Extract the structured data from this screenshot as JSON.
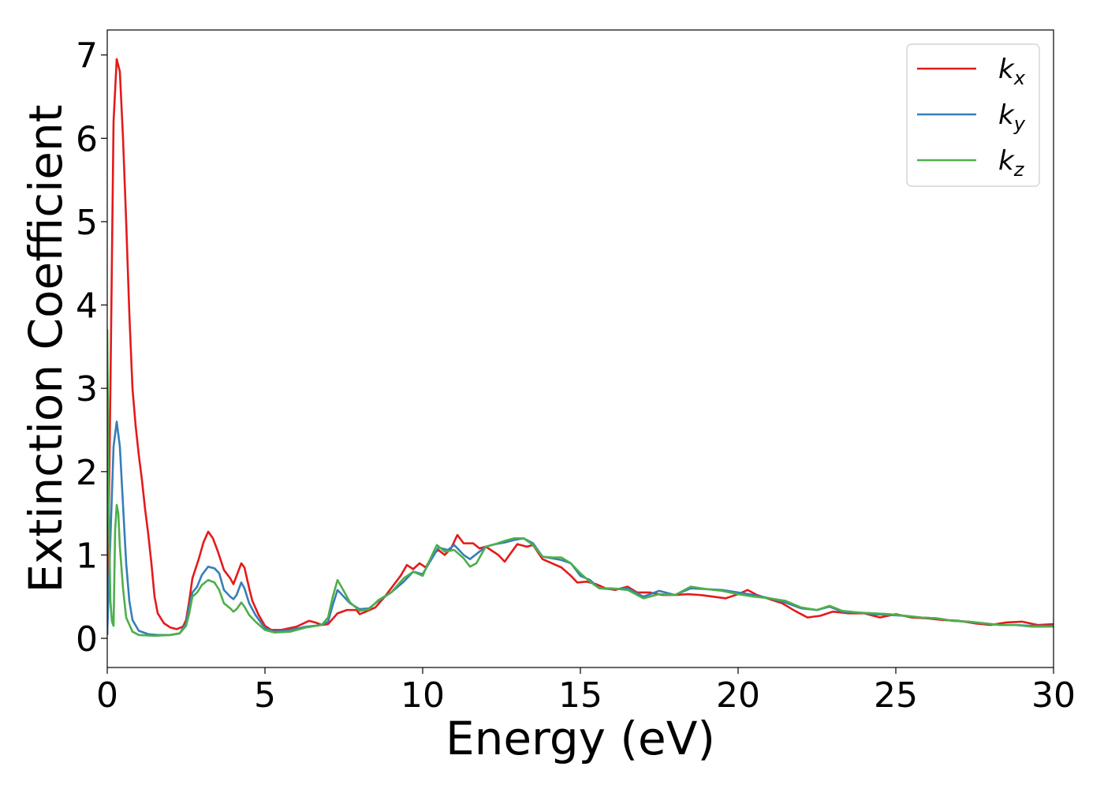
{
  "chart_data": {
    "type": "line",
    "title": "",
    "xlabel": "Energy (eV)",
    "ylabel": "Extinction Coefficient",
    "xlim": [
      0,
      30
    ],
    "ylim": [
      -0.35,
      7.3
    ],
    "grid": false,
    "legend": "top-right",
    "x_ticks": [
      0,
      5,
      10,
      15,
      20,
      25,
      30
    ],
    "y_ticks": [
      0,
      1,
      2,
      3,
      4,
      5,
      6,
      7
    ],
    "series": [
      {
        "name": "k",
        "subscript": "x",
        "color": "#e41a1c",
        "points": [
          [
            0,
            0.05
          ],
          [
            0.1,
            3.0
          ],
          [
            0.2,
            6.2
          ],
          [
            0.3,
            6.95
          ],
          [
            0.4,
            6.8
          ],
          [
            0.5,
            6.0
          ],
          [
            0.6,
            5.0
          ],
          [
            0.7,
            3.9
          ],
          [
            0.8,
            3.0
          ],
          [
            0.9,
            2.55
          ],
          [
            1.0,
            2.2
          ],
          [
            1.1,
            1.9
          ],
          [
            1.2,
            1.55
          ],
          [
            1.3,
            1.25
          ],
          [
            1.4,
            0.9
          ],
          [
            1.5,
            0.5
          ],
          [
            1.6,
            0.3
          ],
          [
            1.8,
            0.18
          ],
          [
            2.0,
            0.13
          ],
          [
            2.2,
            0.11
          ],
          [
            2.4,
            0.14
          ],
          [
            2.5,
            0.22
          ],
          [
            2.6,
            0.45
          ],
          [
            2.7,
            0.72
          ],
          [
            2.9,
            0.95
          ],
          [
            3.05,
            1.15
          ],
          [
            3.2,
            1.28
          ],
          [
            3.35,
            1.2
          ],
          [
            3.5,
            1.05
          ],
          [
            3.7,
            0.82
          ],
          [
            3.9,
            0.72
          ],
          [
            4.0,
            0.65
          ],
          [
            4.1,
            0.75
          ],
          [
            4.25,
            0.9
          ],
          [
            4.35,
            0.85
          ],
          [
            4.5,
            0.6
          ],
          [
            4.6,
            0.45
          ],
          [
            4.8,
            0.28
          ],
          [
            5.0,
            0.15
          ],
          [
            5.2,
            0.1
          ],
          [
            5.5,
            0.1
          ],
          [
            6.0,
            0.14
          ],
          [
            6.4,
            0.21
          ],
          [
            6.6,
            0.19
          ],
          [
            6.8,
            0.16
          ],
          [
            7.0,
            0.17
          ],
          [
            7.3,
            0.3
          ],
          [
            7.6,
            0.34
          ],
          [
            7.9,
            0.34
          ],
          [
            8.0,
            0.29
          ],
          [
            8.2,
            0.32
          ],
          [
            8.5,
            0.37
          ],
          [
            8.8,
            0.5
          ],
          [
            9.1,
            0.65
          ],
          [
            9.3,
            0.75
          ],
          [
            9.5,
            0.88
          ],
          [
            9.7,
            0.83
          ],
          [
            9.9,
            0.9
          ],
          [
            10.1,
            0.85
          ],
          [
            10.35,
            1.02
          ],
          [
            10.5,
            1.06
          ],
          [
            10.7,
            1.0
          ],
          [
            10.9,
            1.08
          ],
          [
            11.1,
            1.24
          ],
          [
            11.3,
            1.14
          ],
          [
            11.6,
            1.14
          ],
          [
            11.8,
            1.08
          ],
          [
            12.0,
            1.1
          ],
          [
            12.2,
            1.05
          ],
          [
            12.4,
            1.0
          ],
          [
            12.6,
            0.92
          ],
          [
            12.75,
            1.0
          ],
          [
            13.0,
            1.13
          ],
          [
            13.3,
            1.1
          ],
          [
            13.5,
            1.12
          ],
          [
            13.8,
            0.95
          ],
          [
            14.1,
            0.9
          ],
          [
            14.4,
            0.85
          ],
          [
            14.7,
            0.75
          ],
          [
            14.9,
            0.67
          ],
          [
            15.2,
            0.68
          ],
          [
            15.5,
            0.65
          ],
          [
            15.8,
            0.6
          ],
          [
            16.1,
            0.58
          ],
          [
            16.5,
            0.62
          ],
          [
            16.8,
            0.55
          ],
          [
            17.2,
            0.55
          ],
          [
            17.6,
            0.52
          ],
          [
            18.0,
            0.52
          ],
          [
            18.4,
            0.53
          ],
          [
            18.8,
            0.52
          ],
          [
            19.2,
            0.5
          ],
          [
            19.6,
            0.48
          ],
          [
            20.0,
            0.53
          ],
          [
            20.3,
            0.58
          ],
          [
            20.6,
            0.52
          ],
          [
            21.0,
            0.47
          ],
          [
            21.4,
            0.42
          ],
          [
            21.8,
            0.33
          ],
          [
            22.2,
            0.25
          ],
          [
            22.6,
            0.27
          ],
          [
            23.0,
            0.32
          ],
          [
            23.5,
            0.3
          ],
          [
            24.0,
            0.3
          ],
          [
            24.5,
            0.25
          ],
          [
            25.0,
            0.29
          ],
          [
            25.5,
            0.25
          ],
          [
            26.0,
            0.24
          ],
          [
            26.5,
            0.22
          ],
          [
            27.0,
            0.21
          ],
          [
            27.5,
            0.18
          ],
          [
            28.0,
            0.16
          ],
          [
            28.5,
            0.19
          ],
          [
            29.0,
            0.2
          ],
          [
            29.5,
            0.16
          ],
          [
            30.0,
            0.17
          ]
        ]
      },
      {
        "name": "k",
        "subscript": "y",
        "color": "#377eb8",
        "points": [
          [
            0,
            0.05
          ],
          [
            0.1,
            1.2
          ],
          [
            0.2,
            2.3
          ],
          [
            0.3,
            2.6
          ],
          [
            0.4,
            2.3
          ],
          [
            0.5,
            1.6
          ],
          [
            0.6,
            0.9
          ],
          [
            0.7,
            0.45
          ],
          [
            0.8,
            0.22
          ],
          [
            1.0,
            0.09
          ],
          [
            1.3,
            0.05
          ],
          [
            1.6,
            0.04
          ],
          [
            2.0,
            0.04
          ],
          [
            2.3,
            0.06
          ],
          [
            2.5,
            0.18
          ],
          [
            2.6,
            0.38
          ],
          [
            2.7,
            0.55
          ],
          [
            2.85,
            0.62
          ],
          [
            3.0,
            0.76
          ],
          [
            3.2,
            0.86
          ],
          [
            3.4,
            0.84
          ],
          [
            3.55,
            0.78
          ],
          [
            3.7,
            0.58
          ],
          [
            3.9,
            0.5
          ],
          [
            4.0,
            0.47
          ],
          [
            4.1,
            0.52
          ],
          [
            4.25,
            0.67
          ],
          [
            4.35,
            0.6
          ],
          [
            4.5,
            0.42
          ],
          [
            4.7,
            0.28
          ],
          [
            5.0,
            0.12
          ],
          [
            5.3,
            0.08
          ],
          [
            5.8,
            0.1
          ],
          [
            6.3,
            0.14
          ],
          [
            6.8,
            0.16
          ],
          [
            7.0,
            0.2
          ],
          [
            7.15,
            0.4
          ],
          [
            7.3,
            0.58
          ],
          [
            7.45,
            0.52
          ],
          [
            7.7,
            0.42
          ],
          [
            8.0,
            0.35
          ],
          [
            8.3,
            0.36
          ],
          [
            8.6,
            0.45
          ],
          [
            9.0,
            0.55
          ],
          [
            9.4,
            0.68
          ],
          [
            9.7,
            0.8
          ],
          [
            10.0,
            0.77
          ],
          [
            10.2,
            0.9
          ],
          [
            10.5,
            1.09
          ],
          [
            10.8,
            1.06
          ],
          [
            11.0,
            1.12
          ],
          [
            11.3,
            1.0
          ],
          [
            11.5,
            0.95
          ],
          [
            11.8,
            1.04
          ],
          [
            12.0,
            1.1
          ],
          [
            12.3,
            1.13
          ],
          [
            12.6,
            1.15
          ],
          [
            12.9,
            1.18
          ],
          [
            13.2,
            1.2
          ],
          [
            13.5,
            1.14
          ],
          [
            13.8,
            0.98
          ],
          [
            14.1,
            0.96
          ],
          [
            14.4,
            0.94
          ],
          [
            14.7,
            0.9
          ],
          [
            15.0,
            0.75
          ],
          [
            15.3,
            0.7
          ],
          [
            15.6,
            0.6
          ],
          [
            16.0,
            0.59
          ],
          [
            16.5,
            0.6
          ],
          [
            17.0,
            0.5
          ],
          [
            17.5,
            0.57
          ],
          [
            18.0,
            0.52
          ],
          [
            18.5,
            0.6
          ],
          [
            19.0,
            0.59
          ],
          [
            19.5,
            0.58
          ],
          [
            20.0,
            0.55
          ],
          [
            20.5,
            0.52
          ],
          [
            21.0,
            0.48
          ],
          [
            21.5,
            0.43
          ],
          [
            22.0,
            0.36
          ],
          [
            22.5,
            0.34
          ],
          [
            22.9,
            0.38
          ],
          [
            23.3,
            0.32
          ],
          [
            23.8,
            0.31
          ],
          [
            24.3,
            0.29
          ],
          [
            24.8,
            0.28
          ],
          [
            25.3,
            0.27
          ],
          [
            25.8,
            0.25
          ],
          [
            26.3,
            0.24
          ],
          [
            26.8,
            0.21
          ],
          [
            27.3,
            0.2
          ],
          [
            27.8,
            0.18
          ],
          [
            28.3,
            0.16
          ],
          [
            28.8,
            0.16
          ],
          [
            29.3,
            0.15
          ],
          [
            30.0,
            0.15
          ]
        ]
      },
      {
        "name": "k",
        "subscript": "z",
        "color": "#4daf4a",
        "points": [
          [
            0,
            3.7
          ],
          [
            0.05,
            1.5
          ],
          [
            0.1,
            0.45
          ],
          [
            0.15,
            0.2
          ],
          [
            0.2,
            0.15
          ],
          [
            0.25,
            1.3
          ],
          [
            0.3,
            1.6
          ],
          [
            0.35,
            1.5
          ],
          [
            0.4,
            1.1
          ],
          [
            0.5,
            0.6
          ],
          [
            0.6,
            0.25
          ],
          [
            0.8,
            0.08
          ],
          [
            1.0,
            0.04
          ],
          [
            1.5,
            0.03
          ],
          [
            2.0,
            0.04
          ],
          [
            2.3,
            0.06
          ],
          [
            2.5,
            0.15
          ],
          [
            2.6,
            0.3
          ],
          [
            2.7,
            0.5
          ],
          [
            2.85,
            0.55
          ],
          [
            3.0,
            0.64
          ],
          [
            3.2,
            0.7
          ],
          [
            3.4,
            0.67
          ],
          [
            3.55,
            0.58
          ],
          [
            3.7,
            0.42
          ],
          [
            3.9,
            0.36
          ],
          [
            4.0,
            0.32
          ],
          [
            4.1,
            0.35
          ],
          [
            4.25,
            0.43
          ],
          [
            4.35,
            0.38
          ],
          [
            4.5,
            0.28
          ],
          [
            4.7,
            0.2
          ],
          [
            5.0,
            0.1
          ],
          [
            5.3,
            0.07
          ],
          [
            5.8,
            0.08
          ],
          [
            6.3,
            0.13
          ],
          [
            6.8,
            0.16
          ],
          [
            7.0,
            0.25
          ],
          [
            7.15,
            0.5
          ],
          [
            7.3,
            0.7
          ],
          [
            7.45,
            0.6
          ],
          [
            7.7,
            0.43
          ],
          [
            8.0,
            0.33
          ],
          [
            8.3,
            0.35
          ],
          [
            8.6,
            0.46
          ],
          [
            9.0,
            0.55
          ],
          [
            9.4,
            0.72
          ],
          [
            9.7,
            0.8
          ],
          [
            10.0,
            0.75
          ],
          [
            10.2,
            0.92
          ],
          [
            10.45,
            1.12
          ],
          [
            10.7,
            1.04
          ],
          [
            11.0,
            1.06
          ],
          [
            11.3,
            0.96
          ],
          [
            11.5,
            0.86
          ],
          [
            11.7,
            0.9
          ],
          [
            12.0,
            1.1
          ],
          [
            12.3,
            1.13
          ],
          [
            12.6,
            1.17
          ],
          [
            12.9,
            1.2
          ],
          [
            13.2,
            1.2
          ],
          [
            13.5,
            1.12
          ],
          [
            13.8,
            0.98
          ],
          [
            14.1,
            0.97
          ],
          [
            14.4,
            0.97
          ],
          [
            14.7,
            0.9
          ],
          [
            15.0,
            0.78
          ],
          [
            15.3,
            0.68
          ],
          [
            15.6,
            0.6
          ],
          [
            16.0,
            0.6
          ],
          [
            16.5,
            0.58
          ],
          [
            17.0,
            0.48
          ],
          [
            17.5,
            0.53
          ],
          [
            18.0,
            0.52
          ],
          [
            18.5,
            0.62
          ],
          [
            19.0,
            0.59
          ],
          [
            19.5,
            0.57
          ],
          [
            20.0,
            0.53
          ],
          [
            20.5,
            0.5
          ],
          [
            21.0,
            0.48
          ],
          [
            21.5,
            0.45
          ],
          [
            22.0,
            0.37
          ],
          [
            22.5,
            0.34
          ],
          [
            22.9,
            0.39
          ],
          [
            23.3,
            0.33
          ],
          [
            23.8,
            0.31
          ],
          [
            24.3,
            0.3
          ],
          [
            24.8,
            0.29
          ],
          [
            25.3,
            0.27
          ],
          [
            25.8,
            0.25
          ],
          [
            26.3,
            0.24
          ],
          [
            26.8,
            0.21
          ],
          [
            27.3,
            0.2
          ],
          [
            27.8,
            0.18
          ],
          [
            28.3,
            0.16
          ],
          [
            28.8,
            0.16
          ],
          [
            29.3,
            0.14
          ],
          [
            30.0,
            0.14
          ]
        ]
      }
    ]
  }
}
